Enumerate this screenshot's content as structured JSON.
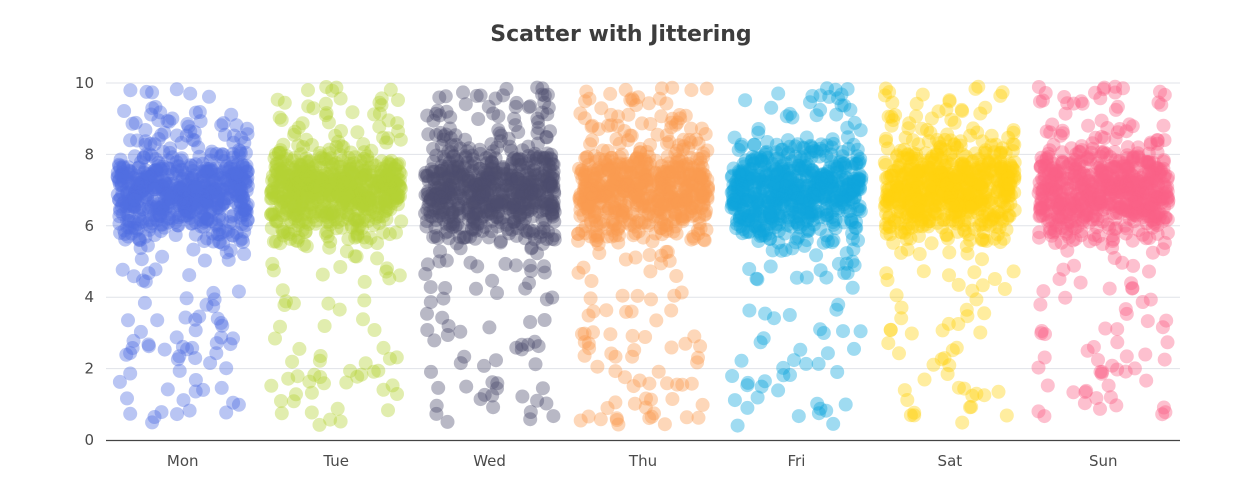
{
  "chart_data": {
    "type": "scatter",
    "title": "Scatter with Jittering",
    "categories": [
      "Mon",
      "Tue",
      "Wed",
      "Thu",
      "Fri",
      "Sat",
      "Sun"
    ],
    "colors": [
      "#4f6ee0",
      "#b5d334",
      "#4e4d6e",
      "#fb9a4f",
      "#10a6dd",
      "#fed10f",
      "#f96186"
    ],
    "ylim": [
      0,
      10
    ],
    "yticks": [
      "0",
      "2",
      "4",
      "6",
      "8",
      "10"
    ],
    "grid": true,
    "legend": "none",
    "marker_opacity": 0.4,
    "distribution": {
      "points_per_category": 700,
      "y_center": 7,
      "y_spread": 0.6,
      "y_range": [
        0.4,
        9.9
      ],
      "jitter_width_fraction": 0.85
    }
  }
}
